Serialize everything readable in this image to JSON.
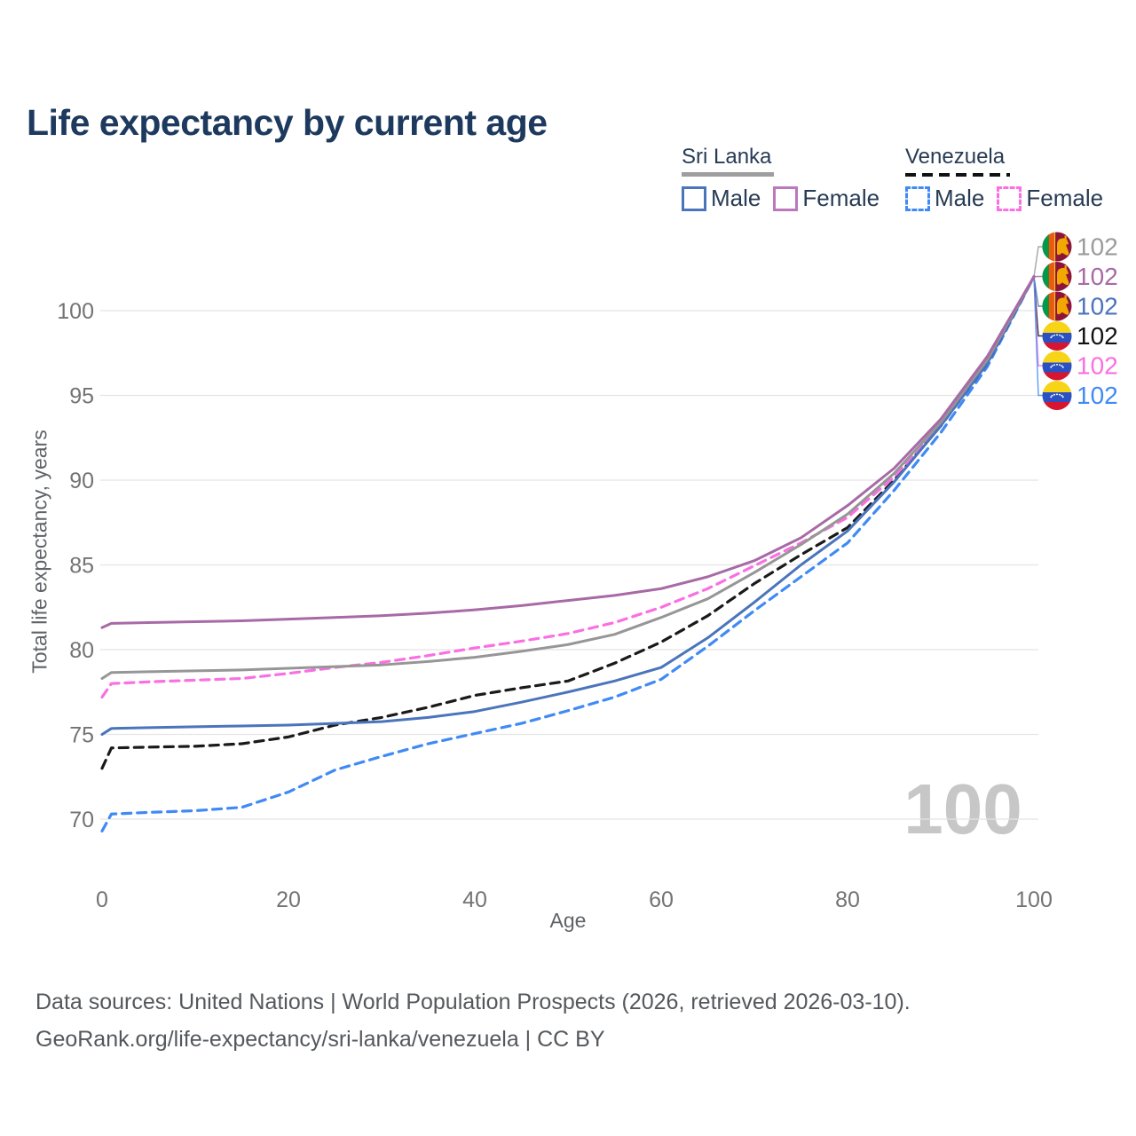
{
  "title": "Life expectancy by current age",
  "legend": {
    "groups": [
      {
        "label": "Sri Lanka",
        "style": "solid",
        "male_label": "Male",
        "female_label": "Female"
      },
      {
        "label": "Venezuela",
        "style": "dashed",
        "male_label": "Male",
        "female_label": "Female"
      }
    ]
  },
  "watermark": "100",
  "footer": {
    "line1": "Data sources: United Nations | World Population Prospects (2026, retrieved 2026-03-10).",
    "line2": "GeoRank.org/life-expectancy/sri-lanka/venezuela | CC BY"
  },
  "colors": {
    "title_text": "#1d3a5e",
    "legend_text": "#273b55",
    "tick_text": "#737373",
    "gridline": "#e4e4e4",
    "watermark": "#c7c7c7",
    "sri_lanka_all": "#969696",
    "sri_lanka_female": "#a76aa6",
    "sri_lanka_male": "#4a74bb",
    "venezuela_all": "#1a1a1a",
    "venezuela_female": "#fa6fe2",
    "venezuela_male": "#3f8af5"
  },
  "chart_data": {
    "type": "line",
    "title": "Life expectancy by current age",
    "xlabel": "Age",
    "ylabel": "Total life expectancy, years",
    "x_ticks": [
      0,
      20,
      40,
      60,
      80,
      100
    ],
    "y_ticks": [
      70,
      75,
      80,
      85,
      90,
      95,
      100
    ],
    "xlim": [
      0,
      100
    ],
    "ylim": [
      68.5,
      103.5
    ],
    "grid": "horizontal-only",
    "legend_position": "top-right",
    "x": [
      0,
      1,
      5,
      10,
      15,
      20,
      25,
      30,
      35,
      40,
      45,
      50,
      55,
      60,
      65,
      70,
      75,
      80,
      85,
      90,
      95,
      100
    ],
    "series": [
      {
        "name": "Sri Lanka — Both sexes",
        "flag": "lk",
        "flag_icon": "sri-lanka-flag-icon",
        "color": "#969696",
        "label_color": "#9b9b9b",
        "dash": "none",
        "end_label": "102",
        "values": [
          78.3,
          78.65,
          78.7,
          78.75,
          78.8,
          78.9,
          79.0,
          79.1,
          79.3,
          79.55,
          79.9,
          80.3,
          80.9,
          81.9,
          83.0,
          84.55,
          86.2,
          88.0,
          90.4,
          93.4,
          97.1,
          102
        ]
      },
      {
        "name": "Sri Lanka — Female",
        "flag": "lk",
        "flag_icon": "sri-lanka-flag-icon",
        "color": "#a76aa6",
        "label_color": "#a76aa6",
        "dash": "none",
        "end_label": "102",
        "values": [
          81.3,
          81.55,
          81.6,
          81.65,
          81.7,
          81.8,
          81.9,
          82.0,
          82.15,
          82.35,
          82.6,
          82.9,
          83.2,
          83.6,
          84.3,
          85.25,
          86.6,
          88.5,
          90.7,
          93.6,
          97.3,
          102
        ]
      },
      {
        "name": "Sri Lanka — Male",
        "flag": "lk",
        "flag_icon": "sri-lanka-flag-icon",
        "color": "#4a74bb",
        "label_color": "#4a74bb",
        "dash": "none",
        "end_label": "102",
        "values": [
          75.0,
          75.35,
          75.4,
          75.45,
          75.5,
          75.55,
          75.65,
          75.75,
          76.0,
          76.35,
          76.9,
          77.5,
          78.15,
          78.95,
          80.7,
          82.8,
          85.0,
          87.0,
          89.9,
          93.2,
          96.9,
          102
        ]
      },
      {
        "name": "Venezuela — Both sexes",
        "flag": "ve",
        "flag_icon": "venezuela-flag-icon",
        "color": "#1a1a1a",
        "label_color": "#111111",
        "dash": "10 7",
        "end_label": "102",
        "values": [
          73.0,
          74.2,
          74.25,
          74.3,
          74.45,
          74.85,
          75.55,
          76.0,
          76.6,
          77.3,
          77.75,
          78.15,
          79.2,
          80.45,
          82.0,
          83.9,
          85.6,
          87.2,
          90.0,
          93.2,
          96.9,
          102
        ]
      },
      {
        "name": "Venezuela — Female",
        "flag": "ve",
        "flag_icon": "venezuela-flag-icon",
        "color": "#fa6fe2",
        "label_color": "#fa6fe2",
        "dash": "10 7",
        "end_label": "102",
        "values": [
          77.2,
          78.0,
          78.1,
          78.2,
          78.3,
          78.6,
          78.95,
          79.25,
          79.65,
          80.1,
          80.5,
          80.95,
          81.6,
          82.5,
          83.6,
          84.95,
          86.3,
          87.8,
          90.2,
          93.3,
          97.0,
          102
        ]
      },
      {
        "name": "Venezuela — Male",
        "flag": "ve",
        "flag_icon": "venezuela-flag-icon",
        "color": "#3f8af5",
        "label_color": "#3f8af5",
        "dash": "10 7",
        "end_label": "102",
        "values": [
          69.3,
          70.3,
          70.4,
          70.5,
          70.7,
          71.6,
          72.9,
          73.7,
          74.45,
          75.05,
          75.65,
          76.4,
          77.2,
          78.25,
          80.2,
          82.3,
          84.3,
          86.3,
          89.4,
          92.8,
          96.7,
          102
        ]
      }
    ],
    "end_value_labels": [
      "102",
      "102",
      "102",
      "102",
      "102",
      "102"
    ],
    "watermark": "100"
  }
}
